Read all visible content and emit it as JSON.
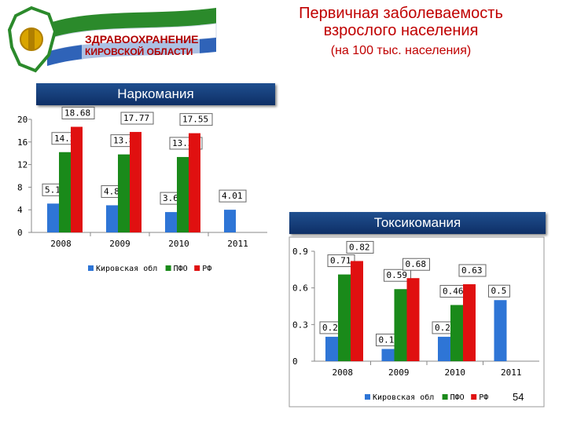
{
  "header": {
    "logo_line1": "ЗДРАВООХРАНЕНИЕ",
    "logo_line2": "КИРОВСКОЙ ОБЛАСТИ",
    "title_line1": "Первичная заболеваемость",
    "title_line2": "взрослого населения",
    "subtitle": "(на 100 тыс. населения)"
  },
  "colors": {
    "series1": "#2e75d6",
    "series2": "#1a8a1a",
    "series3": "#e01010",
    "banner": "#1f4f8f",
    "title": "#c00000"
  },
  "chart_data": [
    {
      "type": "bar",
      "title": "Наркомания",
      "categories": [
        "2008",
        "2009",
        "2010",
        "2011"
      ],
      "series": [
        {
          "name": "Кировская обл",
          "values": [
            5.1,
            4.8,
            3.6,
            4.01
          ],
          "labels": [
            "5.1",
            "4.8",
            "3.6",
            "4.01"
          ]
        },
        {
          "name": "ПФО",
          "values": [
            14.2,
            13.8,
            13.34,
            null
          ],
          "labels": [
            "14.2",
            "13.8",
            "13.34",
            ""
          ]
        },
        {
          "name": "РФ",
          "values": [
            18.68,
            17.77,
            17.55,
            null
          ],
          "labels": [
            "18.68",
            "17.77",
            "17.55",
            ""
          ]
        }
      ],
      "ylim": [
        0,
        20
      ],
      "yticks": [
        "0",
        "4",
        "8",
        "12",
        "16",
        "20"
      ],
      "grid": false,
      "legend_position": "bottom"
    },
    {
      "type": "bar",
      "title": "Токсикомания",
      "categories": [
        "2008",
        "2009",
        "2010",
        "2011"
      ],
      "series": [
        {
          "name": "Кировская обл",
          "values": [
            0.2,
            0.1,
            0.2,
            0.5
          ],
          "labels": [
            "0.2",
            "0.1",
            "0.2",
            "0.5"
          ]
        },
        {
          "name": "ПФО",
          "values": [
            0.71,
            0.59,
            0.46,
            null
          ],
          "labels": [
            "0.71",
            "0.59",
            "0.46",
            ""
          ]
        },
        {
          "name": "РФ",
          "values": [
            0.82,
            0.68,
            0.63,
            null
          ],
          "labels": [
            "0.82",
            "0.68",
            "0.63",
            ""
          ]
        }
      ],
      "ylim": [
        0,
        0.9
      ],
      "yticks": [
        "0",
        "0.3",
        "0.6",
        "0.9"
      ],
      "grid": false,
      "legend_position": "bottom"
    }
  ],
  "page_number": "54"
}
